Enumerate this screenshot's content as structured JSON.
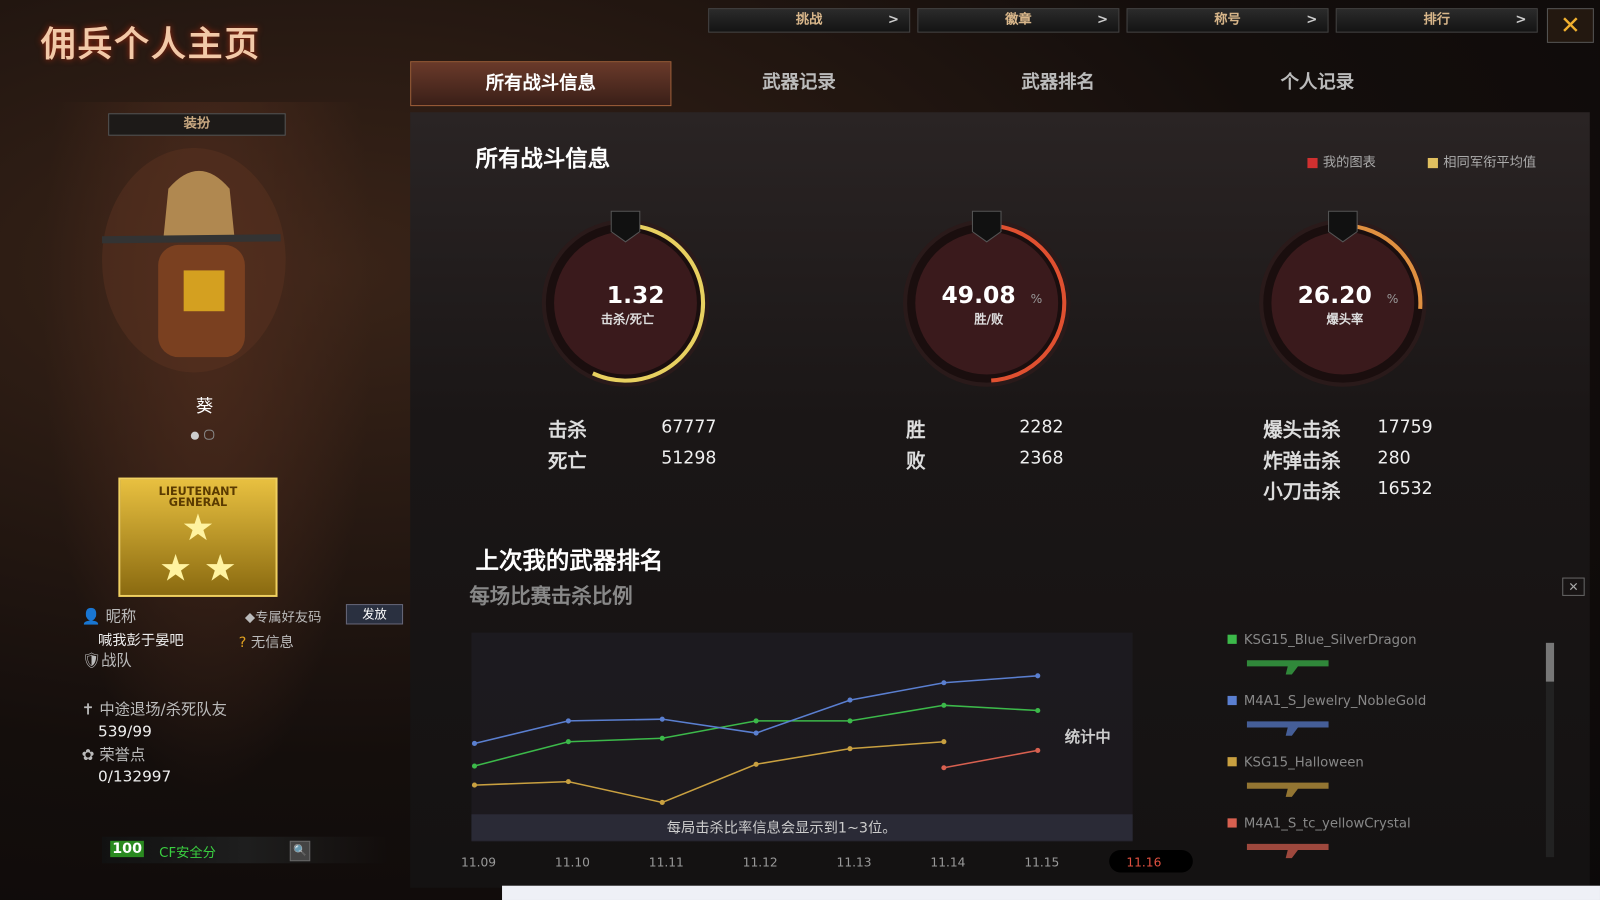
{
  "header": {
    "title": "佣兵个人主页",
    "top_buttons": [
      "挑战",
      "徽章",
      "称号",
      "排行"
    ]
  },
  "tabs": [
    "所有战斗信息",
    "武器记录",
    "武器排名",
    "个人记录"
  ],
  "profile": {
    "outfit_button": "装扮",
    "character_name": "葵",
    "rank_badge": "LIEUTENANT GENERAL",
    "nickname_label": "昵称",
    "nickname": "喊我彭于晏吧",
    "friend_code_label": "专属好友码",
    "send_button": "发放",
    "friend_code": "无信息",
    "team_label": "战队",
    "quit_label": "中途退场/杀死队友",
    "quit_value": "539/99",
    "honor_label": "荣誉点",
    "honor_value": "0/132997",
    "security_score": 100,
    "security_label": "CF安全分"
  },
  "stats": {
    "title": "所有战斗信息",
    "legend": [
      "我的图表",
      "相同军衔平均值"
    ],
    "gauges": [
      {
        "value": 1.32,
        "label": "击杀/死亡"
      },
      {
        "value": 49.08,
        "unit": "%",
        "label": "胜/败"
      },
      {
        "value": 26.2,
        "value_label": "26.20",
        "unit": "%",
        "label": "爆头率"
      }
    ],
    "groups": [
      [
        {
          "label": "击杀",
          "value": 67777
        },
        {
          "label": "死亡",
          "value": 51298
        }
      ],
      [
        {
          "label": "胜",
          "value": 2282
        },
        {
          "label": "败",
          "value": 2368
        }
      ],
      [
        {
          "label": "爆头击杀",
          "value": 17759
        },
        {
          "label": "炸弹击杀",
          "value": 280
        },
        {
          "label": "小刀击杀",
          "value": 16532
        }
      ]
    ]
  },
  "chart_data": {
    "type": "line",
    "title": "上次我的武器排名",
    "subtitle": "每场比赛击杀比例",
    "status": "统计中",
    "note": "每局击杀比率信息会显示到1~3位。",
    "categories": [
      "11.09",
      "11.10",
      "11.11",
      "11.12",
      "11.13",
      "11.14",
      "11.15",
      "11.16"
    ],
    "ylim": [
      0,
      100
    ],
    "series": [
      {
        "name": "KSG15_Blue_SilverDragon",
        "color": "#3cb94a",
        "values": [
          29,
          43,
          45,
          55,
          55,
          64,
          61,
          null
        ]
      },
      {
        "name": "M4A1_S_Jewelry_NobleGold",
        "color": "#5a7fd0",
        "values": [
          42,
          55,
          56,
          48,
          67,
          77,
          81,
          null
        ]
      },
      {
        "name": "KSG15_Halloween",
        "color": "#c9a040",
        "values": [
          18,
          20,
          8,
          30,
          39,
          43,
          null,
          null
        ]
      },
      {
        "name": "M4A1_S_tc_yellowCrystal",
        "color": "#d86050",
        "values": [
          null,
          null,
          null,
          null,
          null,
          28,
          38,
          null
        ]
      }
    ]
  }
}
